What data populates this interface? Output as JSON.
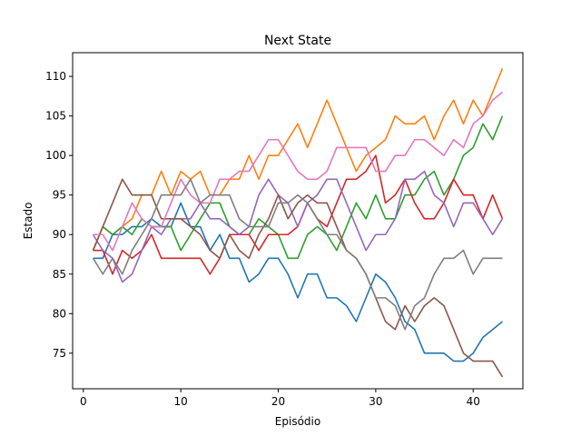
{
  "chart_data": {
    "type": "line",
    "title": "Next State",
    "xlabel": "Episódio",
    "ylabel": "Estado",
    "xlim": [
      -1.1,
      45.1
    ],
    "ylim": [
      70.5,
      113.0
    ],
    "xticks": [
      0,
      10,
      20,
      30,
      40
    ],
    "yticks": [
      75,
      80,
      85,
      90,
      95,
      100,
      105,
      110
    ],
    "grid": false,
    "legend": "none",
    "x": [
      1,
      2,
      3,
      4,
      5,
      6,
      7,
      8,
      9,
      10,
      11,
      12,
      13,
      14,
      15,
      16,
      17,
      18,
      19,
      20,
      21,
      22,
      23,
      24,
      25,
      26,
      27,
      28,
      29,
      30,
      31,
      32,
      33,
      34,
      35,
      36,
      37,
      38,
      39,
      40,
      41,
      42,
      43
    ],
    "series": [
      {
        "color": "#1f77b4",
        "values": [
          87,
          87,
          90,
          90,
          91,
          91,
          92,
          91,
          91,
          94,
          91,
          91,
          88,
          90,
          87,
          87,
          84,
          85,
          87,
          87,
          85,
          82,
          85,
          85,
          82,
          82,
          81,
          79,
          82,
          85,
          84,
          82,
          79,
          78,
          75,
          75,
          75,
          74,
          74,
          75,
          77,
          78,
          79
        ]
      },
      {
        "color": "#ff7f0e",
        "values": [
          88,
          91,
          90,
          91,
          92,
          95,
          95,
          98,
          95,
          98,
          97,
          98,
          95,
          95,
          97,
          97,
          100,
          97,
          100,
          100,
          102,
          104,
          101,
          104,
          107,
          104,
          101,
          98,
          100,
          101,
          102,
          105,
          104,
          104,
          105,
          102,
          105,
          107,
          104,
          107,
          105,
          108,
          111
        ]
      },
      {
        "color": "#2ca02c",
        "values": [
          88,
          91,
          90,
          91,
          90,
          92,
          91,
          91,
          91,
          88,
          90,
          92,
          94,
          94,
          91,
          90,
          90,
          92,
          91,
          90,
          87,
          87,
          90,
          91,
          90,
          88,
          91,
          94,
          92,
          95,
          92,
          92,
          95,
          95,
          97,
          98,
          95,
          97,
          100,
          101,
          104,
          102,
          105
        ]
      },
      {
        "color": "#d62728",
        "values": [
          88,
          88,
          85,
          88,
          87,
          88,
          90,
          87,
          87,
          87,
          87,
          87,
          85,
          87,
          90,
          90,
          90,
          88,
          90,
          90,
          90,
          91,
          94,
          92,
          91,
          94,
          97,
          97,
          98,
          100,
          94,
          95,
          97,
          94,
          92,
          92,
          94,
          97,
          95,
          95,
          92,
          95,
          92
        ]
      },
      {
        "color": "#9467bd",
        "values": [
          90,
          88,
          87,
          84,
          85,
          88,
          91,
          90,
          92,
          92,
          92,
          94,
          92,
          92,
          91,
          90,
          91,
          95,
          97,
          95,
          94,
          91,
          94,
          95,
          97,
          97,
          94,
          91,
          88,
          90,
          90,
          92,
          97,
          97,
          98,
          95,
          94,
          91,
          94,
          94,
          92,
          90,
          92
        ]
      },
      {
        "color": "#8c564b",
        "values": [
          88,
          91,
          94,
          97,
          95,
          95,
          95,
          92,
          92,
          92,
          91,
          90,
          88,
          87,
          90,
          88,
          87,
          90,
          92,
          95,
          92,
          94,
          95,
          94,
          94,
          91,
          88,
          87,
          85,
          82,
          79,
          78,
          81,
          79,
          81,
          82,
          81,
          78,
          75,
          74,
          74,
          74,
          72
        ]
      },
      {
        "color": "#e377c2",
        "values": [
          90,
          90,
          88,
          91,
          94,
          92,
          91,
          91,
          94,
          97,
          95,
          94,
          94,
          97,
          97,
          98,
          98,
          100,
          102,
          102,
          100,
          98,
          97,
          97,
          98,
          101,
          101,
          101,
          101,
          98,
          98,
          100,
          100,
          102,
          102,
          101,
          100,
          102,
          101,
          104,
          105,
          107,
          108
        ]
      },
      {
        "color": "#7f7f7f",
        "values": [
          87,
          85,
          87,
          85,
          88,
          90,
          92,
          95,
          95,
          95,
          97,
          94,
          95,
          95,
          95,
          92,
          91,
          91,
          91,
          94,
          94,
          95,
          94,
          92,
          90,
          90,
          88,
          87,
          85,
          82,
          82,
          81,
          78,
          81,
          82,
          85,
          87,
          87,
          88,
          85,
          87,
          87,
          87
        ]
      }
    ]
  }
}
